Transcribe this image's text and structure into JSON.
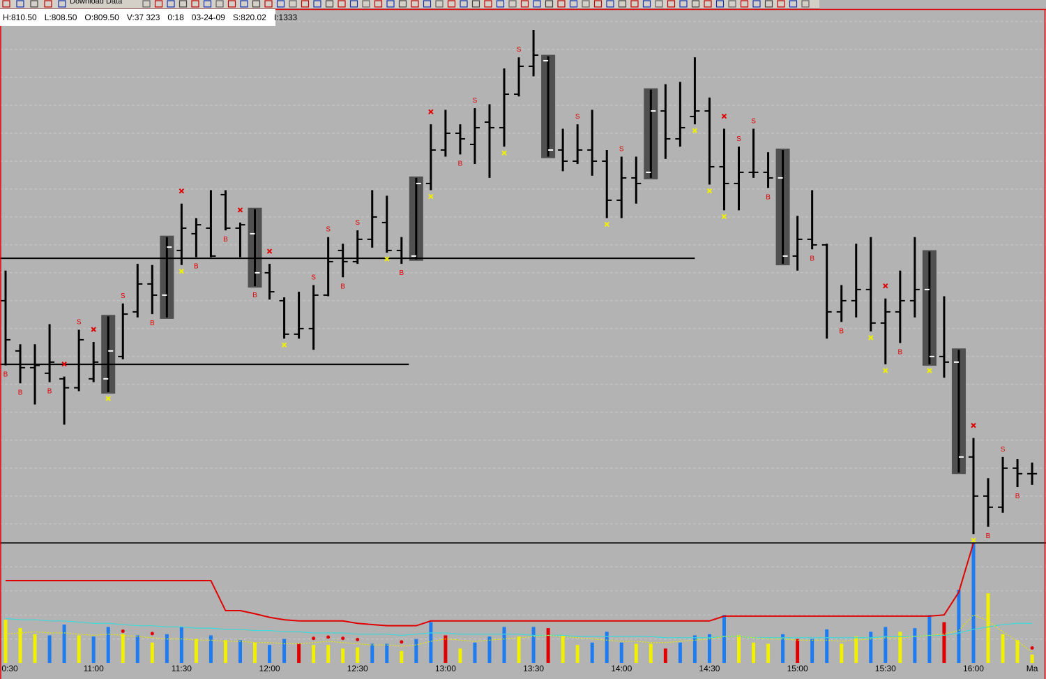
{
  "chart_data": {
    "type": "ohlc",
    "toolbar_text": "Download Data",
    "info": [
      "H:810.50",
      "L:808.50",
      "O:809.50",
      "V:37 323",
      "0:18",
      "03-24-09",
      "S:820.02",
      "I:1333"
    ],
    "time_labels": [
      {
        "bar": 0,
        "label": "0:30"
      },
      {
        "bar": 6,
        "label": "11:00"
      },
      {
        "bar": 12,
        "label": "11:30"
      },
      {
        "bar": 18,
        "label": "12:00"
      },
      {
        "bar": 24,
        "label": "12:30"
      },
      {
        "bar": 30,
        "label": "13:00"
      },
      {
        "bar": 36,
        "label": "13:30"
      },
      {
        "bar": 42,
        "label": "14:00"
      },
      {
        "bar": 48,
        "label": "14:30"
      },
      {
        "bar": 54,
        "label": "15:00"
      },
      {
        "bar": 60,
        "label": "15:30"
      },
      {
        "bar": 66,
        "label": "16:00"
      },
      {
        "bar": 70,
        "label": "Ma"
      }
    ],
    "ylim": [
      803.3,
      851
    ],
    "grid_prices": [
      850,
      847.5,
      845,
      842.5,
      840,
      837.5,
      835,
      832.5,
      830,
      827.5,
      825,
      822.5,
      820,
      817.5,
      815,
      812.5,
      810,
      807.5,
      805
    ],
    "ohlc": [
      [
        825,
        827.7,
        819.2,
        821.5
      ],
      [
        820.5,
        821.1,
        817.6,
        819
      ],
      [
        819,
        821.1,
        815.7,
        819.2
      ],
      [
        818.5,
        822.9,
        817.7,
        819.5
      ],
      [
        818,
        818.2,
        813.9,
        817.2
      ],
      [
        817.2,
        822.4,
        816.9,
        821.5
      ],
      [
        818,
        821.3,
        817.7,
        819.5
      ],
      [
        818,
        823.6,
        816.8,
        820.5
      ],
      [
        820,
        824.75,
        819.75,
        823.8
      ],
      [
        824,
        828.3,
        823.5,
        826.5
      ],
      [
        826.5,
        828.2,
        823.8,
        825.5
      ],
      [
        825.5,
        830.7,
        823.5,
        829.8
      ],
      [
        829.5,
        833.7,
        828.2,
        831.5
      ],
      [
        831,
        832.4,
        828.9,
        831.8
      ],
      [
        831.5,
        834.9,
        828.9,
        829
      ],
      [
        834.5,
        834.9,
        831.3,
        831.5
      ],
      [
        831.5,
        832,
        828.9,
        831.8
      ],
      [
        831,
        833.2,
        826.3,
        827.5
      ],
      [
        827.5,
        828.3,
        825.1,
        825.8
      ],
      [
        825,
        825.3,
        821.6,
        822
      ],
      [
        822,
        825.8,
        821.6,
        822.5
      ],
      [
        822.5,
        826.4,
        820.6,
        825.5
      ],
      [
        825.5,
        830.7,
        825.4,
        828.5
      ],
      [
        829.5,
        830.1,
        827.1,
        828.5
      ],
      [
        828.5,
        831.3,
        828.3,
        830.5
      ],
      [
        830.5,
        834.9,
        829.75,
        832.5
      ],
      [
        832,
        834.4,
        829.3,
        829.5
      ],
      [
        829.5,
        830.7,
        828.3,
        828.8
      ],
      [
        829,
        836,
        828.7,
        835.5
      ],
      [
        835.5,
        840.8,
        834.9,
        838.5
      ],
      [
        838.5,
        842.1,
        837.9,
        840
      ],
      [
        840,
        840.8,
        838.1,
        839.5
      ],
      [
        839,
        842.25,
        837.25,
        840.5
      ],
      [
        841,
        842.6,
        836,
        840.5
      ],
      [
        840.5,
        845.8,
        838.8,
        843.5
      ],
      [
        843.5,
        846.8,
        843.3,
        846
      ],
      [
        846,
        849.25,
        845.1,
        847
      ],
      [
        846.5,
        846.9,
        837.9,
        838.5
      ],
      [
        838.5,
        840.4,
        836.6,
        837.5
      ],
      [
        837.5,
        840.8,
        837.25,
        838.5
      ],
      [
        838.5,
        842.1,
        836.2,
        837.5
      ],
      [
        837.5,
        838.5,
        832.4,
        834
      ],
      [
        834,
        837.9,
        832.4,
        836
      ],
      [
        836,
        837.9,
        833.7,
        835.5
      ],
      [
        836.5,
        843.9,
        836,
        842
      ],
      [
        842,
        844.4,
        837.7,
        839.5
      ],
      [
        839.5,
        844.6,
        838.8,
        840.5
      ],
      [
        841.5,
        846.8,
        840.8,
        842
      ],
      [
        842,
        843.2,
        835.4,
        837
      ],
      [
        837,
        840.4,
        833.1,
        835.5
      ],
      [
        835.5,
        838.8,
        833.1,
        836.5
      ],
      [
        836.5,
        840.4,
        836,
        836.5
      ],
      [
        836.5,
        838.3,
        835.1,
        836
      ],
      [
        836,
        838.5,
        828.3,
        829
      ],
      [
        829,
        832.6,
        827.7,
        830.5
      ],
      [
        830.5,
        834.9,
        829.6,
        830
      ],
      [
        830,
        830.1,
        821.6,
        824
      ],
      [
        824,
        826.4,
        823.1,
        825
      ],
      [
        825,
        830.1,
        823.5,
        826
      ],
      [
        826,
        830.7,
        822.25,
        823
      ],
      [
        823,
        825.2,
        819.3,
        824
      ],
      [
        824,
        827.7,
        821.2,
        825
      ],
      [
        825,
        830.7,
        823.5,
        826
      ],
      [
        826,
        829.4,
        819.3,
        820
      ],
      [
        820,
        825.4,
        818.1,
        819.5
      ],
      [
        819.5,
        820.6,
        809.6,
        811
      ],
      [
        811,
        812.7,
        804.1,
        807.5
      ],
      [
        807.5,
        809.1,
        804.75,
        806.5
      ],
      [
        806.5,
        811,
        806,
        810
      ],
      [
        810,
        810.8,
        808.3,
        809.5
      ],
      [
        809.5,
        810.5,
        808.5,
        809.5
      ]
    ],
    "highlight_bars": [
      7,
      11,
      17,
      28,
      37,
      44,
      53,
      63,
      65
    ],
    "levels": [
      {
        "value": 828.8,
        "start": 0,
        "end": 47
      },
      {
        "value": 819.3,
        "start": 0,
        "end": 27.5
      }
    ],
    "signals": [
      {
        "bar": 0,
        "label": "B"
      },
      {
        "bar": 1,
        "label": "B"
      },
      {
        "bar": 3,
        "label": "B"
      },
      {
        "bar": 10,
        "label": "B"
      },
      {
        "bar": 13,
        "label": "B"
      },
      {
        "bar": 15,
        "label": "B"
      },
      {
        "bar": 17,
        "label": "B"
      },
      {
        "bar": 23,
        "label": "B"
      },
      {
        "bar": 27,
        "label": "B"
      },
      {
        "bar": 31,
        "label": "B"
      },
      {
        "bar": 52,
        "label": "B"
      },
      {
        "bar": 55,
        "label": "B"
      },
      {
        "bar": 57,
        "label": "B"
      },
      {
        "bar": 61,
        "label": "B"
      },
      {
        "bar": 67,
        "label": "B"
      },
      {
        "bar": 69,
        "label": "B"
      },
      {
        "bar": 5,
        "label": "S"
      },
      {
        "bar": 8,
        "label": "S"
      },
      {
        "bar": 21,
        "label": "S"
      },
      {
        "bar": 22,
        "label": "S"
      },
      {
        "bar": 24,
        "label": "S"
      },
      {
        "bar": 32,
        "label": "S"
      },
      {
        "bar": 35,
        "label": "S"
      },
      {
        "bar": 39,
        "label": "S"
      },
      {
        "bar": 42,
        "label": "S"
      },
      {
        "bar": 50,
        "label": "S"
      },
      {
        "bar": 51,
        "label": "S"
      },
      {
        "bar": 68,
        "label": "S"
      }
    ],
    "red_x_bars": [
      4,
      6,
      12,
      16,
      18,
      29,
      49,
      60,
      66
    ],
    "yellow_x_bars": [
      7,
      12,
      19,
      26,
      29,
      34,
      41,
      47,
      48,
      49,
      59,
      60,
      63,
      66
    ],
    "volume": {
      "vlim": [
        0,
        100
      ],
      "grid": [
        20,
        40,
        60,
        80
      ],
      "values": [
        36,
        29,
        24,
        23,
        32,
        23,
        22,
        30,
        24,
        23,
        17,
        24,
        30,
        20,
        23,
        19,
        19,
        17,
        15,
        20,
        16,
        15,
        15,
        12,
        13,
        16,
        16,
        10,
        20,
        34,
        23,
        12,
        17,
        22,
        30,
        22,
        30,
        29,
        23,
        15,
        17,
        26,
        17,
        16,
        16,
        12,
        17,
        23,
        24,
        40,
        23,
        17,
        16,
        24,
        20,
        20,
        28,
        16,
        22,
        26,
        30,
        26,
        29,
        40,
        34,
        61,
        100,
        58,
        24,
        19,
        7
      ],
      "colors": [
        "#f0f000",
        "#f0f000",
        "#f0f000",
        "#1e7cf0",
        "#1e7cf0",
        "#f0f000",
        "#1e7cf0",
        "#1e7cf0",
        "#f0f000",
        "#1e7cf0",
        "#f0f000",
        "#1e7cf0",
        "#1e7cf0",
        "#f0f000",
        "#1e7cf0",
        "#f0f000",
        "#1e7cf0",
        "#f0f000",
        "#1e7cf0",
        "#1e7cf0",
        "#e00000",
        "#f0f000",
        "#f0f000",
        "#f0f000",
        "#f0f000",
        "#1e7cf0",
        "#1e7cf0",
        "#f0f000",
        "#1e7cf0",
        "#1e7cf0",
        "#e00000",
        "#f0f000",
        "#1e7cf0",
        "#1e7cf0",
        "#1e7cf0",
        "#f0f000",
        "#1e7cf0",
        "#e00000",
        "#f0f000",
        "#f0f000",
        "#1e7cf0",
        "#1e7cf0",
        "#1e7cf0",
        "#f0f000",
        "#f0f000",
        "#e00000",
        "#1e7cf0",
        "#1e7cf0",
        "#1e7cf0",
        "#1e7cf0",
        "#f0f000",
        "#f0f000",
        "#f0f000",
        "#1e7cf0",
        "#e00000",
        "#1e7cf0",
        "#1e7cf0",
        "#f0f000",
        "#f0f000",
        "#1e7cf0",
        "#1e7cf0",
        "#f0f000",
        "#1e7cf0",
        "#1e7cf0",
        "#e00000",
        "#1e7cf0",
        "#1e7cf0",
        "#f0f000",
        "#f0f000",
        "#f0f000",
        "#f0f000"
      ],
      "lines": [
        {
          "color": "#e00000",
          "values": [
            68.6,
            68.6,
            68.6,
            68.6,
            68.6,
            68.6,
            68.6,
            68.6,
            68.6,
            68.6,
            68.6,
            68.6,
            68.6,
            68.6,
            68.6,
            43.6,
            43.6,
            41,
            38,
            36,
            35,
            35,
            35,
            35,
            33,
            32,
            31,
            31,
            31,
            35,
            35,
            35,
            35,
            35,
            35,
            35,
            35,
            35,
            35,
            35,
            35,
            35,
            35,
            35,
            35,
            35,
            35,
            35,
            35,
            39,
            39,
            39,
            39,
            39,
            39,
            39,
            39,
            39,
            39,
            39,
            39,
            39,
            39,
            39,
            40,
            59,
            100,
            null,
            null,
            null,
            null
          ]
        },
        {
          "color": "#40d8d8",
          "values": [
            37,
            36,
            36,
            35,
            35,
            34,
            33,
            33,
            32,
            31,
            31,
            30,
            30,
            29,
            29,
            28,
            28,
            27,
            27,
            26,
            26,
            25,
            25,
            25,
            24,
            24,
            24,
            23,
            24,
            25,
            25,
            24,
            24,
            24,
            24,
            24,
            23,
            23,
            23,
            22,
            22,
            22,
            22,
            22,
            22,
            21,
            21,
            21,
            21,
            22,
            22,
            21,
            21,
            21,
            21,
            21,
            21,
            21,
            21,
            21,
            22,
            22,
            22,
            23,
            23,
            25,
            28,
            30,
            32,
            33,
            33
          ]
        },
        {
          "color": "#e8e800",
          "values": [
            24,
            25,
            26,
            25,
            25,
            24,
            23,
            24,
            23,
            22,
            21,
            20,
            20,
            19,
            19,
            18,
            18,
            17,
            17,
            16,
            16,
            17,
            18,
            17,
            16,
            15,
            15,
            14,
            15,
            18,
            20,
            19,
            18,
            19,
            20,
            21,
            22,
            23,
            22,
            21,
            20,
            19,
            18,
            18,
            17,
            17,
            18,
            19,
            20,
            22,
            22,
            21,
            20,
            20,
            19,
            19,
            19,
            18,
            19,
            20,
            21,
            21,
            22,
            23,
            24,
            27,
            40,
            35,
            26,
            18,
            9
          ]
        }
      ]
    },
    "red_dot_bars": [
      8,
      10,
      21,
      22,
      23,
      24,
      27,
      70
    ]
  }
}
